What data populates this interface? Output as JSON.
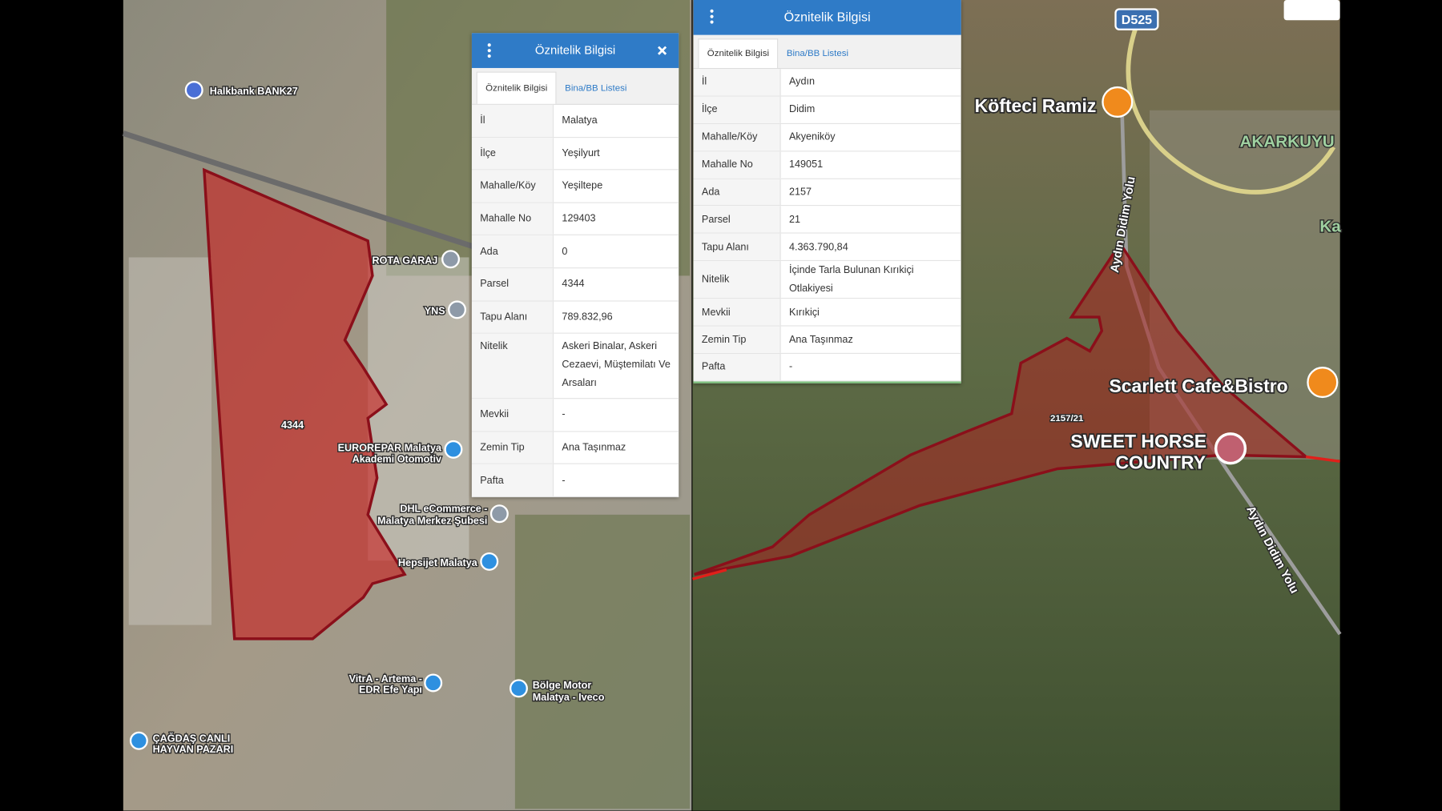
{
  "left_map": {
    "labels": [
      "Halkbank BANK27",
      "ROTA GARAJ",
      "YNS",
      "4344",
      "EUROREPAR Malatya",
      "Akademi Otomotiv",
      "DHL eCommerce -",
      "Malatya Merkez Şubesi",
      "Hepsijet Malatya",
      "VitrA - Artema -",
      "EDR Efe Yapı",
      "Bölge Motor",
      "Malatya - Iveco",
      "ÇAĞDAŞ CANLI",
      "HAYVAN PAZARI"
    ]
  },
  "left_popup": {
    "title": "Öznitelik Bilgisi",
    "tabs": [
      "Öznitelik Bilgisi",
      "Bina/BB Listesi"
    ],
    "rows": [
      [
        "İl",
        "Malatya"
      ],
      [
        "İlçe",
        "Yeşilyurt"
      ],
      [
        "Mahalle/Köy",
        "Yeşiltepe"
      ],
      [
        "Mahalle No",
        "129403"
      ],
      [
        "Ada",
        "0"
      ],
      [
        "Parsel",
        "4344"
      ],
      [
        "Tapu Alanı",
        "789.832,96"
      ],
      [
        "Nitelik",
        "Askeri Binalar, Askeri Cezaevi, Müştemilatı Ve Arsaları"
      ],
      [
        "Mevkii",
        "-"
      ],
      [
        "Zemin Tip",
        "Ana Taşınmaz"
      ],
      [
        "Pafta",
        "-"
      ]
    ]
  },
  "right_map": {
    "labels": [
      "D525",
      "Köfteci Ramiz",
      "AKARKUYU",
      "Ka",
      "Aydın Didim Yolu",
      "Scarlett Cafe&Bistro",
      "2157/21",
      "SWEET HORSE",
      "COUNTRY",
      "Aydın Didim Yolu"
    ]
  },
  "right_popup": {
    "title": "Öznitelik Bilgisi",
    "tabs": [
      "Öznitelik Bilgisi",
      "Bina/BB Listesi"
    ],
    "rows": [
      [
        "İl",
        "Aydın"
      ],
      [
        "İlçe",
        "Didim"
      ],
      [
        "Mahalle/Köy",
        "Akyeniköy"
      ],
      [
        "Mahalle No",
        "149051"
      ],
      [
        "Ada",
        "2157"
      ],
      [
        "Parsel",
        "21"
      ],
      [
        "Tapu Alanı",
        "4.363.790,84"
      ],
      [
        "Nitelik",
        "İçinde Tarla Bulunan Kırıkiçi Otlakiyesi"
      ],
      [
        "Mevkii",
        "Kırıkiçi"
      ],
      [
        "Zemin Tip",
        "Ana Taşınmaz"
      ],
      [
        "Pafta",
        "-"
      ]
    ]
  }
}
